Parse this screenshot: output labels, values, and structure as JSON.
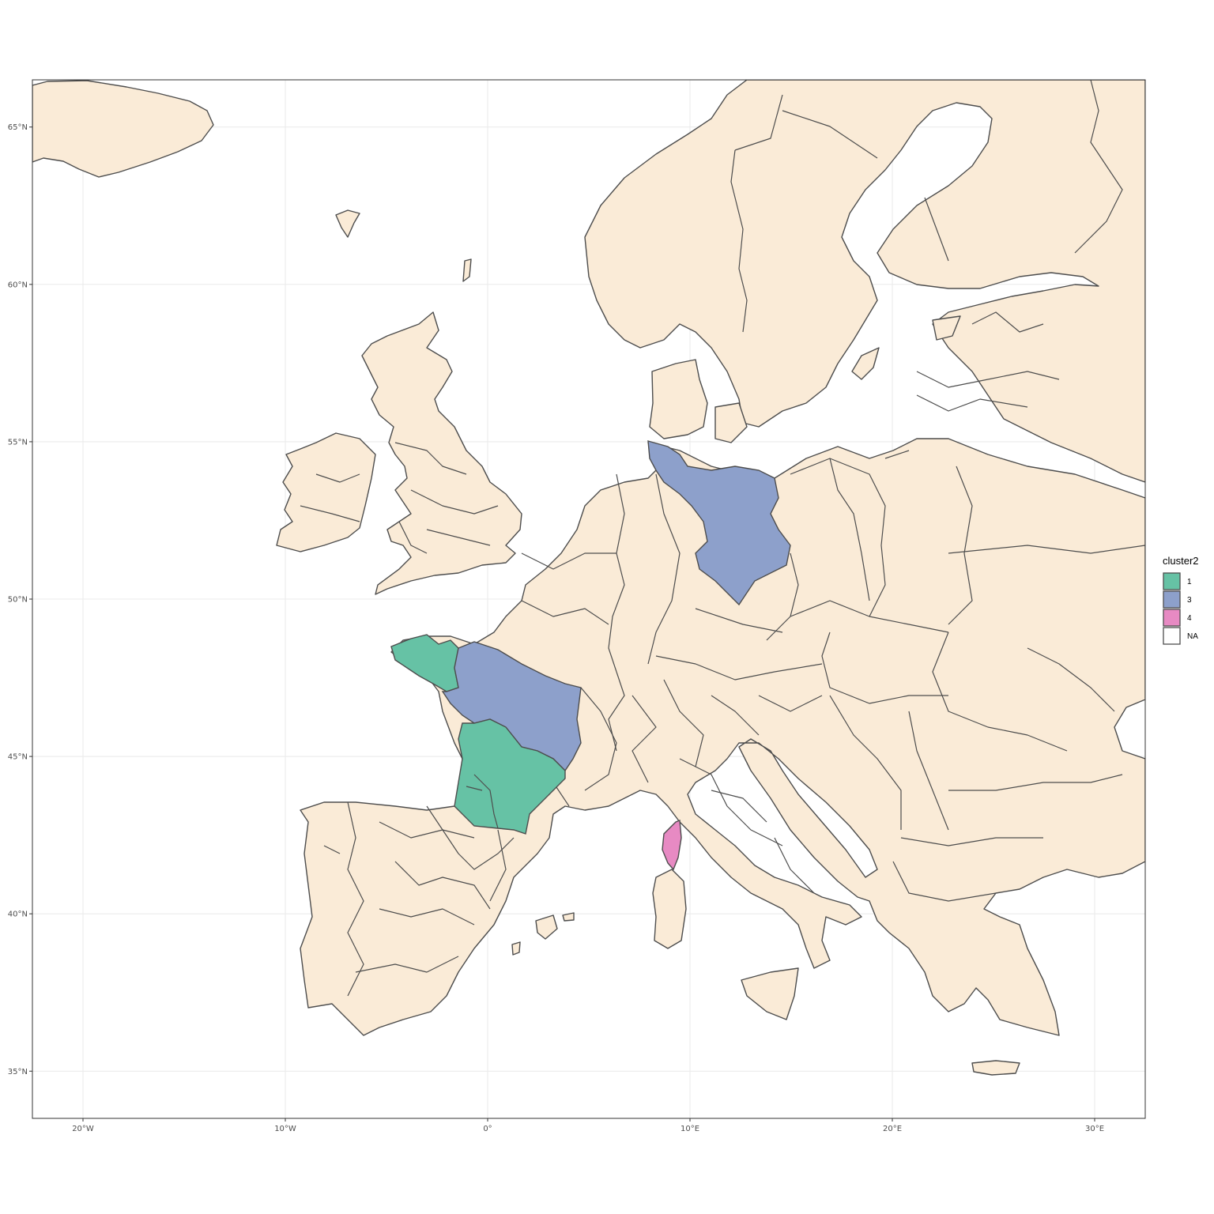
{
  "map": {
    "projection": "lon/lat",
    "lon_range": [
      -22.5,
      32.5
    ],
    "lat_range": [
      33.5,
      66.5
    ],
    "grid": true,
    "x_ticks": [
      {
        "value": -20,
        "label": "20°W"
      },
      {
        "value": -10,
        "label": "10°W"
      },
      {
        "value": 0,
        "label": "0°"
      },
      {
        "value": 10,
        "label": "10°E"
      },
      {
        "value": 20,
        "label": "20°E"
      },
      {
        "value": 30,
        "label": "30°E"
      }
    ],
    "y_ticks": [
      {
        "value": 35,
        "label": "35°N"
      },
      {
        "value": 40,
        "label": "40°N"
      },
      {
        "value": 45,
        "label": "45°N"
      },
      {
        "value": 50,
        "label": "50°N"
      },
      {
        "value": 55,
        "label": "55°N"
      },
      {
        "value": 60,
        "label": "60°N"
      },
      {
        "value": 65,
        "label": "65°N"
      }
    ],
    "colors": {
      "land": "#FAEBD7",
      "border": "#4d4d4d",
      "cluster_1": "#66C2A5",
      "cluster_3": "#8DA0CB",
      "cluster_4": "#E78AC3",
      "na": "#FFFFFF"
    }
  },
  "legend": {
    "title": "cluster2",
    "placement": "right",
    "items": [
      {
        "label": "1",
        "color": "#66C2A5"
      },
      {
        "label": "3",
        "color": "#8DA0CB"
      },
      {
        "label": "4",
        "color": "#E78AC3"
      },
      {
        "label": "NA",
        "color": "#FFFFFF"
      }
    ]
  },
  "highlighted_regions": [
    {
      "region": "Brittany",
      "cluster": "1"
    },
    {
      "region": "Aquitaine",
      "cluster": "1"
    },
    {
      "region": "Centre / Pays de la Loire / Burgundy",
      "cluster": "3"
    },
    {
      "region": "Northeast Germany",
      "cluster": "3"
    },
    {
      "region": "Corsica",
      "cluster": "4"
    }
  ]
}
